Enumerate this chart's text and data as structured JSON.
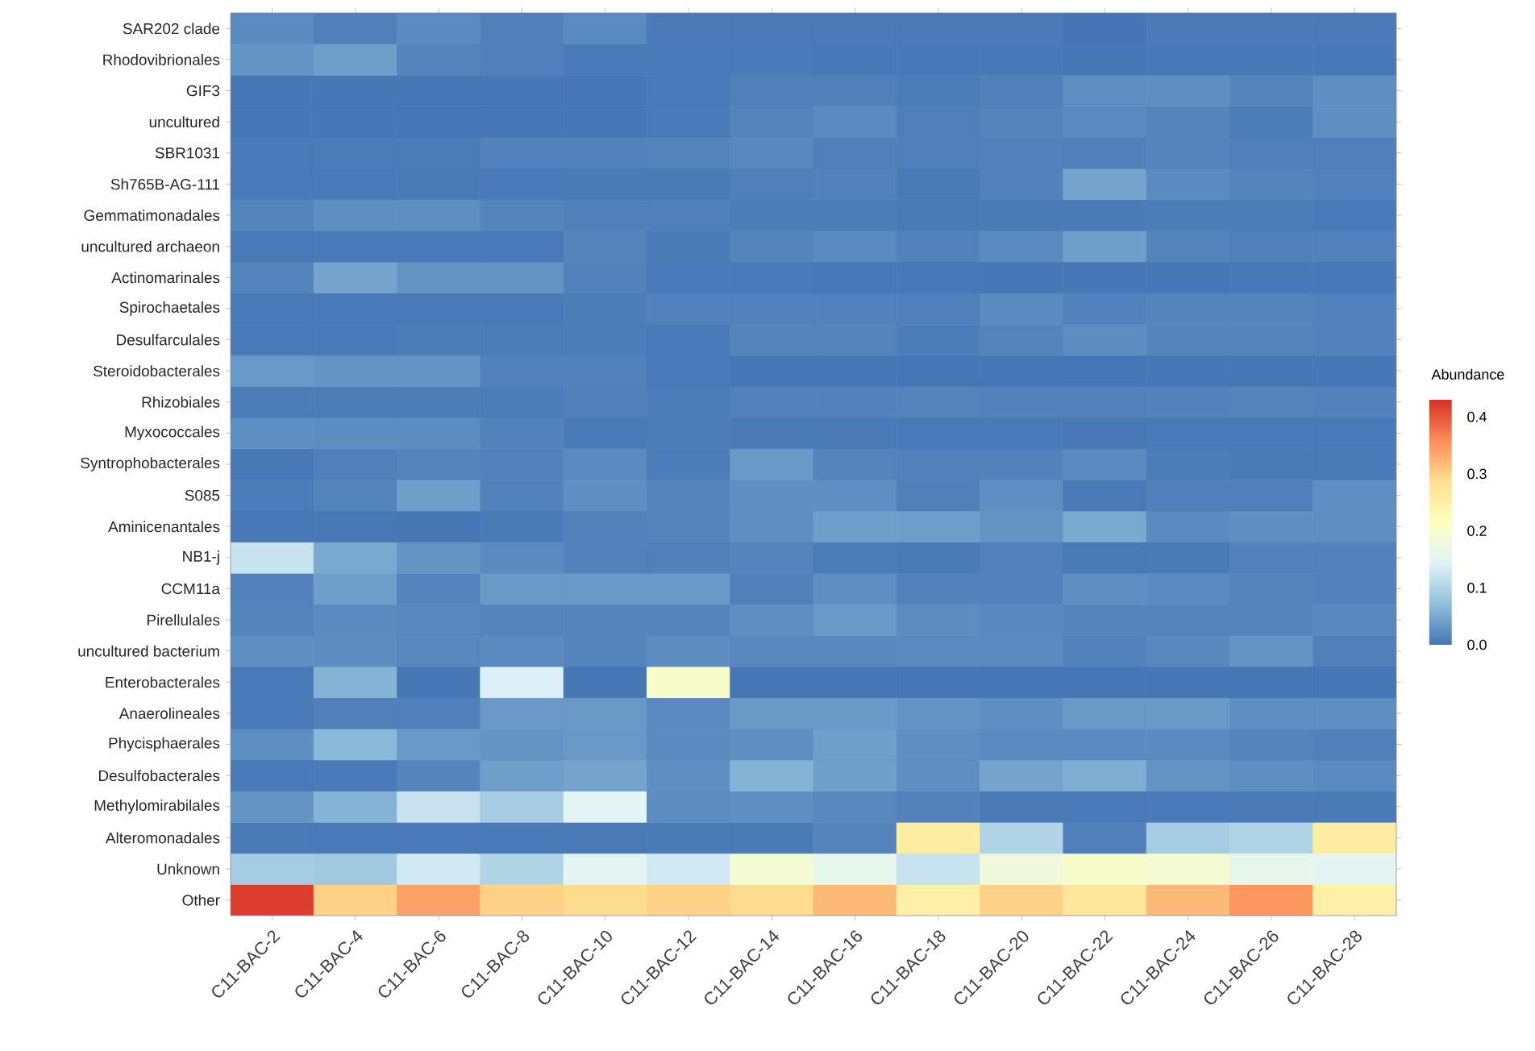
{
  "chart_data": {
    "type": "heatmap",
    "categories": [
      "C11-BAC-2",
      "C11-BAC-4",
      "C11-BAC-6",
      "C11-BAC-8",
      "C11-BAC-10",
      "C11-BAC-12",
      "C11-BAC-14",
      "C11-BAC-16",
      "C11-BAC-18",
      "C11-BAC-20",
      "C11-BAC-22",
      "C11-BAC-24",
      "C11-BAC-26",
      "C11-BAC-28"
    ],
    "y_categories": [
      "SAR202 clade",
      "Rhodovibrionales",
      "GIF3",
      "uncultured",
      "SBR1031",
      "Sh765B-AG-111",
      "Gemmatimonadales",
      "uncultured archaeon",
      "Actinomarinales",
      "Spirochaetales",
      "Desulfarculales",
      "Steroidobacterales",
      "Rhizobiales",
      "Myxococcales",
      "Syntrophobacterales",
      "S085",
      "Aminicenantales",
      "NB1-j",
      "CCM11a",
      "Pirellulales",
      "uncultured bacterium",
      "Enterobacterales",
      "Anaerolineales",
      "Phycisphaerales",
      "Desulfobacterales",
      "Methylomirabilales",
      "Alteromonadales",
      "Unknown",
      "Other"
    ],
    "cells": [
      [
        0.02,
        0.01,
        0.02,
        0.01,
        0.02,
        0.005,
        0.005,
        0.005,
        0.005,
        0.005,
        0.0,
        0.005,
        0.005,
        0.005
      ],
      [
        0.03,
        0.04,
        0.015,
        0.01,
        0.005,
        0.005,
        0.005,
        0.003,
        0.003,
        0.003,
        0.002,
        0.003,
        0.003,
        0.003
      ],
      [
        0.002,
        0.002,
        0.002,
        0.002,
        0.002,
        0.005,
        0.01,
        0.01,
        0.008,
        0.01,
        0.025,
        0.025,
        0.015,
        0.025
      ],
      [
        0.002,
        0.002,
        0.001,
        0.002,
        0.002,
        0.005,
        0.015,
        0.02,
        0.01,
        0.015,
        0.02,
        0.015,
        0.008,
        0.025
      ],
      [
        0.005,
        0.007,
        0.007,
        0.012,
        0.012,
        0.015,
        0.018,
        0.01,
        0.01,
        0.012,
        0.01,
        0.015,
        0.01,
        0.01
      ],
      [
        0.004,
        0.004,
        0.006,
        0.004,
        0.006,
        0.006,
        0.01,
        0.012,
        0.006,
        0.012,
        0.045,
        0.02,
        0.015,
        0.012
      ],
      [
        0.015,
        0.025,
        0.025,
        0.015,
        0.01,
        0.01,
        0.008,
        0.008,
        0.006,
        0.006,
        0.006,
        0.008,
        0.008,
        0.004
      ],
      [
        0.004,
        0.004,
        0.004,
        0.004,
        0.015,
        0.006,
        0.015,
        0.02,
        0.012,
        0.02,
        0.04,
        0.015,
        0.01,
        0.012
      ],
      [
        0.015,
        0.045,
        0.03,
        0.03,
        0.012,
        0.004,
        0.004,
        0.003,
        0.003,
        0.002,
        0.002,
        0.002,
        0.003,
        0.003
      ],
      [
        0.004,
        0.004,
        0.004,
        0.004,
        0.008,
        0.012,
        0.012,
        0.012,
        0.01,
        0.02,
        0.012,
        0.015,
        0.015,
        0.012
      ],
      [
        0.004,
        0.004,
        0.008,
        0.008,
        0.008,
        0.005,
        0.015,
        0.015,
        0.008,
        0.015,
        0.022,
        0.015,
        0.015,
        0.012
      ],
      [
        0.035,
        0.03,
        0.03,
        0.012,
        0.012,
        0.004,
        0.002,
        0.002,
        0.002,
        0.002,
        0.001,
        0.002,
        0.002,
        0.002
      ],
      [
        0.008,
        0.008,
        0.008,
        0.008,
        0.01,
        0.008,
        0.012,
        0.012,
        0.015,
        0.012,
        0.012,
        0.012,
        0.015,
        0.012
      ],
      [
        0.025,
        0.022,
        0.022,
        0.012,
        0.006,
        0.008,
        0.006,
        0.006,
        0.004,
        0.004,
        0.003,
        0.004,
        0.004,
        0.004
      ],
      [
        0.003,
        0.01,
        0.015,
        0.012,
        0.02,
        0.008,
        0.035,
        0.015,
        0.012,
        0.012,
        0.02,
        0.008,
        0.006,
        0.006
      ],
      [
        0.008,
        0.015,
        0.04,
        0.012,
        0.025,
        0.015,
        0.025,
        0.025,
        0.01,
        0.025,
        0.004,
        0.01,
        0.01,
        0.025
      ],
      [
        0.003,
        0.003,
        0.002,
        0.006,
        0.012,
        0.015,
        0.025,
        0.04,
        0.04,
        0.03,
        0.05,
        0.02,
        0.025,
        0.025
      ],
      [
        0.12,
        0.05,
        0.03,
        0.02,
        0.012,
        0.01,
        0.015,
        0.008,
        0.006,
        0.012,
        0.004,
        0.006,
        0.012,
        0.012
      ],
      [
        0.012,
        0.04,
        0.015,
        0.035,
        0.035,
        0.035,
        0.01,
        0.025,
        0.012,
        0.012,
        0.025,
        0.02,
        0.015,
        0.012
      ],
      [
        0.015,
        0.02,
        0.018,
        0.015,
        0.015,
        0.015,
        0.025,
        0.035,
        0.022,
        0.018,
        0.015,
        0.015,
        0.015,
        0.018
      ],
      [
        0.025,
        0.022,
        0.018,
        0.02,
        0.015,
        0.022,
        0.018,
        0.018,
        0.02,
        0.02,
        0.012,
        0.018,
        0.03,
        0.01
      ],
      [
        0.004,
        0.06,
        0.002,
        0.14,
        0.002,
        0.2,
        0.001,
        0.001,
        0.001,
        0.001,
        0.001,
        0.001,
        0.001,
        0.001
      ],
      [
        0.005,
        0.01,
        0.01,
        0.035,
        0.035,
        0.02,
        0.035,
        0.035,
        0.03,
        0.025,
        0.035,
        0.035,
        0.025,
        0.025
      ],
      [
        0.025,
        0.065,
        0.035,
        0.03,
        0.035,
        0.02,
        0.025,
        0.04,
        0.025,
        0.02,
        0.02,
        0.02,
        0.015,
        0.01
      ],
      [
        0.004,
        0.005,
        0.015,
        0.04,
        0.045,
        0.025,
        0.06,
        0.04,
        0.025,
        0.045,
        0.055,
        0.03,
        0.025,
        0.02
      ],
      [
        0.03,
        0.06,
        0.12,
        0.09,
        0.15,
        0.022,
        0.025,
        0.018,
        0.012,
        0.006,
        0.004,
        0.005,
        0.006,
        0.006
      ],
      [
        0.006,
        0.004,
        0.004,
        0.004,
        0.004,
        0.006,
        0.006,
        0.015,
        0.26,
        0.1,
        0.01,
        0.09,
        0.1,
        0.26
      ],
      [
        0.09,
        0.085,
        0.13,
        0.1,
        0.15,
        0.13,
        0.19,
        0.16,
        0.12,
        0.18,
        0.2,
        0.19,
        0.16,
        0.15
      ],
      [
        0.42,
        0.3,
        0.34,
        0.3,
        0.29,
        0.3,
        0.29,
        0.32,
        0.25,
        0.3,
        0.27,
        0.32,
        0.35,
        0.25
      ]
    ],
    "clabel": "Abundance",
    "clim": [
      0,
      0.43
    ],
    "cticks": [
      {
        "value": 0,
        "label": "0.0"
      },
      0.1,
      0.2,
      0.3,
      0.4
    ]
  }
}
